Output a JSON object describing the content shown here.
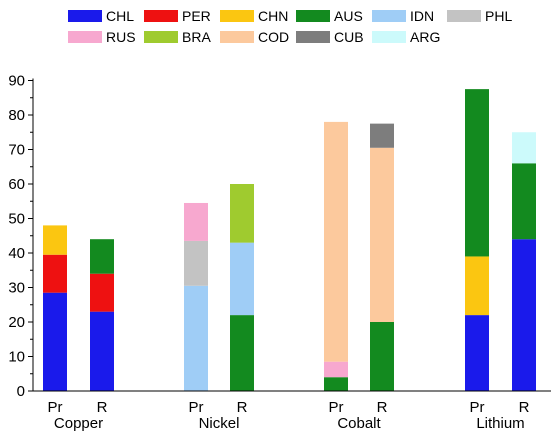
{
  "chart_data": {
    "type": "bar",
    "stacked": true,
    "title": "",
    "xlabel": "",
    "ylabel": "",
    "ylim": [
      0,
      90
    ],
    "yticks": [
      "0",
      "10",
      "20",
      "30",
      "40",
      "50",
      "60",
      "70",
      "80",
      "90"
    ],
    "grid": false,
    "legend_position": "top",
    "legend": [
      {
        "code": "CHL",
        "color": "#1a1aeb"
      },
      {
        "code": "PER",
        "color": "#ee1111"
      },
      {
        "code": "CHN",
        "color": "#fbc611"
      },
      {
        "code": "AUS",
        "color": "#138a1f"
      },
      {
        "code": "IDN",
        "color": "#9fcdf6"
      },
      {
        "code": "PHL",
        "color": "#c3c3c3"
      },
      {
        "code": "RUS",
        "color": "#f7a8cf"
      },
      {
        "code": "BRA",
        "color": "#9fcb2f"
      },
      {
        "code": "COD",
        "color": "#fcc99d"
      },
      {
        "code": "CUB",
        "color": "#7d7d7d"
      },
      {
        "code": "ARG",
        "color": "#ccfafb"
      }
    ],
    "groups": [
      {
        "name": "Copper",
        "bars": [
          {
            "label": "Pr",
            "segments": [
              {
                "code": "CHL",
                "value": 28.5
              },
              {
                "code": "PER",
                "value": 11
              },
              {
                "code": "CHN",
                "value": 8.5
              }
            ]
          },
          {
            "label": "R",
            "segments": [
              {
                "code": "CHL",
                "value": 23
              },
              {
                "code": "PER",
                "value": 11
              },
              {
                "code": "AUS",
                "value": 10
              }
            ]
          }
        ]
      },
      {
        "name": "Nickel",
        "bars": [
          {
            "label": "Pr",
            "segments": [
              {
                "code": "IDN",
                "value": 30.5
              },
              {
                "code": "PHL",
                "value": 13
              },
              {
                "code": "RUS",
                "value": 11
              }
            ]
          },
          {
            "label": "R",
            "segments": [
              {
                "code": "AUS",
                "value": 22
              },
              {
                "code": "IDN",
                "value": 21
              },
              {
                "code": "BRA",
                "value": 17
              }
            ]
          }
        ]
      },
      {
        "name": "Cobalt",
        "bars": [
          {
            "label": "Pr",
            "segments": [
              {
                "code": "AUS",
                "value": 4
              },
              {
                "code": "RUS",
                "value": 4.5
              },
              {
                "code": "COD",
                "value": 69.5
              }
            ]
          },
          {
            "label": "R",
            "segments": [
              {
                "code": "AUS",
                "value": 20
              },
              {
                "code": "COD",
                "value": 50.5
              },
              {
                "code": "CUB",
                "value": 7
              }
            ]
          }
        ]
      },
      {
        "name": "Lithium",
        "bars": [
          {
            "label": "Pr",
            "segments": [
              {
                "code": "CHL",
                "value": 22
              },
              {
                "code": "CHN",
                "value": 17
              },
              {
                "code": "AUS",
                "value": 48.5
              }
            ]
          },
          {
            "label": "R",
            "segments": [
              {
                "code": "CHL",
                "value": 44
              },
              {
                "code": "AUS",
                "value": 22
              },
              {
                "code": "ARG",
                "value": 9
              }
            ]
          }
        ]
      }
    ]
  }
}
